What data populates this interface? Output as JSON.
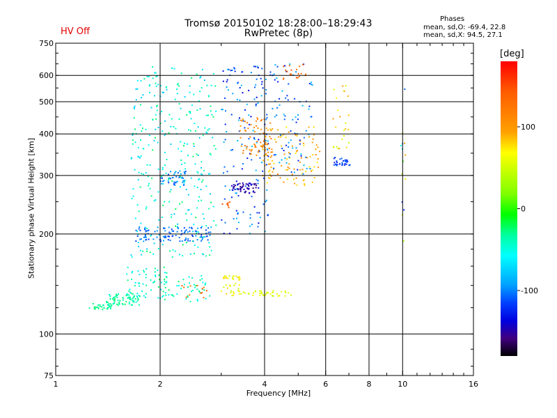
{
  "header": {
    "title": "Tromsø 20150102 18:28:00–18:29:43",
    "subtitle": "RwPretec (8p)",
    "hv_status": "HV Off"
  },
  "stats": {
    "title": "Phases",
    "o_line": "mean, sd,O: -69.4, 22.8",
    "x_line": "mean, sd,X:  94.5, 27.1"
  },
  "colorbar": {
    "unit": "[deg]",
    "ticks": [
      100,
      0,
      -100
    ],
    "range": [
      -180,
      180
    ]
  },
  "chart_data": {
    "type": "scatter",
    "title": "Tromsø 20150102 18:28:00–18:29:43",
    "subtitle": "RwPretec (8p)",
    "xlabel": "Frequency [MHz]",
    "ylabel": "Stationary phase Virtual Height [km]",
    "x_scale": "log",
    "y_scale": "log",
    "xlim": [
      1,
      16
    ],
    "ylim": [
      75,
      750
    ],
    "x_ticks": [
      1,
      2,
      4,
      6,
      8,
      10,
      16
    ],
    "y_ticks": [
      75,
      100,
      200,
      300,
      400,
      500,
      600,
      750
    ],
    "x_grid": [
      2,
      4,
      6,
      8,
      10
    ],
    "y_grid": [
      100,
      200,
      300,
      400,
      500,
      600
    ],
    "color_by": "phase [deg]",
    "clusters": [
      {
        "x": [
          1.25,
          1.45
        ],
        "y": [
          118,
          124
        ],
        "phase": [
          -40,
          -20
        ],
        "n": 30
      },
      {
        "x": [
          1.4,
          1.75
        ],
        "y": [
          122,
          132
        ],
        "phase": [
          -50,
          -20
        ],
        "n": 70
      },
      {
        "x": [
          1.6,
          2.1
        ],
        "y": [
          128,
          160
        ],
        "phase": [
          -70,
          -20
        ],
        "n": 60
      },
      {
        "x": [
          1.65,
          2.9
        ],
        "y": [
          170,
          640
        ],
        "phase": [
          -80,
          -20
        ],
        "n": 320
      },
      {
        "x": [
          1.7,
          2.8
        ],
        "y": [
          190,
          210
        ],
        "phase": [
          -120,
          -90
        ],
        "n": 110
      },
      {
        "x": [
          2.0,
          2.4
        ],
        "y": [
          280,
          310
        ],
        "phase": [
          -120,
          -80
        ],
        "n": 40
      },
      {
        "x": [
          2.0,
          2.8
        ],
        "y": [
          125,
          150
        ],
        "phase": [
          -60,
          -20
        ],
        "n": 50
      },
      {
        "x": [
          2.3,
          2.8
        ],
        "y": [
          128,
          140
        ],
        "phase": [
          120,
          150
        ],
        "n": 12
      },
      {
        "x": [
          3.0,
          4.1
        ],
        "y": [
          200,
          650
        ],
        "phase": [
          -140,
          -80
        ],
        "n": 150
      },
      {
        "x": [
          3.2,
          3.8
        ],
        "y": [
          265,
          285
        ],
        "phase": [
          -160,
          -140
        ],
        "n": 50
      },
      {
        "x": [
          3.0,
          3.4
        ],
        "y": [
          130,
          150
        ],
        "phase": [
          45,
          85
        ],
        "n": 40
      },
      {
        "x": [
          3.4,
          4.8
        ],
        "y": [
          130,
          135
        ],
        "phase": [
          40,
          70
        ],
        "n": 40
      },
      {
        "x": [
          3.4,
          4.2
        ],
        "y": [
          340,
          450
        ],
        "phase": [
          100,
          130
        ],
        "n": 70
      },
      {
        "x": [
          3.9,
          5.8
        ],
        "y": [
          280,
          420
        ],
        "phase": [
          70,
          110
        ],
        "n": 110
      },
      {
        "x": [
          4.0,
          5.5
        ],
        "y": [
          300,
          650
        ],
        "phase": [
          -130,
          -80
        ],
        "n": 90
      },
      {
        "x": [
          4.5,
          5.3
        ],
        "y": [
          580,
          650
        ],
        "phase": [
          120,
          150
        ],
        "n": 20
      },
      {
        "x": [
          6.3,
          7.1
        ],
        "y": [
          320,
          340
        ],
        "phase": [
          -130,
          -100
        ],
        "n": 30
      },
      {
        "x": [
          6.3,
          7.0
        ],
        "y": [
          360,
          560
        ],
        "phase": [
          40,
          100
        ],
        "n": 25
      },
      {
        "x": [
          3.0,
          3.2
        ],
        "y": [
          240,
          250
        ],
        "phase": [
          130,
          150
        ],
        "n": 8
      },
      {
        "x": [
          9.9,
          10.2
        ],
        "y": [
          150,
          600
        ],
        "phase": [
          -120,
          110
        ],
        "n": 14
      }
    ]
  }
}
